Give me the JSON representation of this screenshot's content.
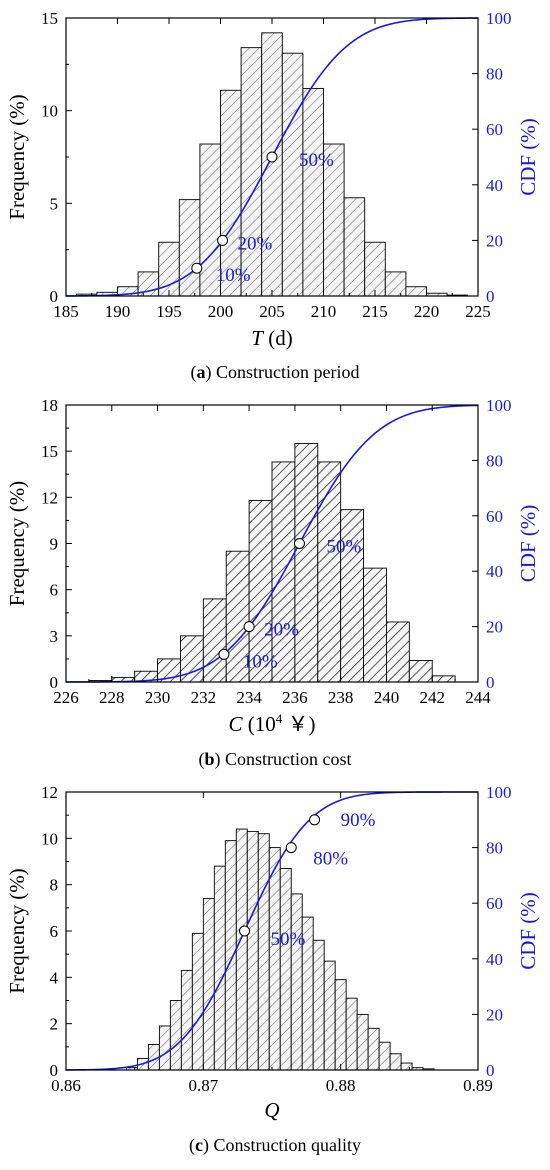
{
  "colors": {
    "cdf": "#1a1adb",
    "axis": "#000000",
    "bar_fill": "#f2f2f2"
  },
  "chart_data": [
    {
      "type": "bar",
      "panel_letter": "a",
      "caption": "Construction period",
      "xlabel_italic": "T",
      "xlabel_rest": " (d)",
      "ylabel": "Frequency (%)",
      "y2label": "CDF (%)",
      "xlim": [
        185,
        225
      ],
      "ylim": [
        0,
        15
      ],
      "y2lim": [
        0,
        100
      ],
      "xticks": [
        185,
        190,
        195,
        200,
        205,
        210,
        215,
        220,
        225
      ],
      "yticks": [
        0,
        5,
        10,
        15
      ],
      "y2ticks": [
        0,
        20,
        40,
        60,
        80,
        100
      ],
      "bin_width": 2,
      "hatch": "light",
      "bins": [
        {
          "x": 187,
          "value": 0.1
        },
        {
          "x": 189,
          "value": 0.2
        },
        {
          "x": 191,
          "value": 0.5
        },
        {
          "x": 193,
          "value": 1.3
        },
        {
          "x": 195,
          "value": 2.9
        },
        {
          "x": 197,
          "value": 5.2
        },
        {
          "x": 199,
          "value": 8.2
        },
        {
          "x": 201,
          "value": 11.1
        },
        {
          "x": 203,
          "value": 13.4
        },
        {
          "x": 205,
          "value": 14.2
        },
        {
          "x": 207,
          "value": 13.1
        },
        {
          "x": 209,
          "value": 11.2
        },
        {
          "x": 211,
          "value": 8.2
        },
        {
          "x": 213,
          "value": 5.3
        },
        {
          "x": 215,
          "value": 2.9
        },
        {
          "x": 217,
          "value": 1.3
        },
        {
          "x": 219,
          "value": 0.5
        },
        {
          "x": 221,
          "value": 0.15
        },
        {
          "x": 223,
          "value": 0.05
        }
      ],
      "cdf": {
        "mean": 205,
        "sd": 5.7
      },
      "markers": [
        {
          "x": 197.7,
          "cdf": 10,
          "label": "10%"
        },
        {
          "x": 200.2,
          "cdf": 20,
          "label": "20%"
        },
        {
          "x": 205.0,
          "cdf": 50,
          "label": "50%"
        }
      ]
    },
    {
      "type": "bar",
      "panel_letter": "b",
      "caption": "Construction cost",
      "xlabel_italic": "C",
      "xlabel_rest": " (10",
      "xlabel_sup": "4",
      "xlabel_tail": " ￥)",
      "ylabel": "Frequency (%)",
      "y2label": "CDF (%)",
      "xlim": [
        226,
        244
      ],
      "ylim": [
        0,
        18
      ],
      "y2lim": [
        0,
        100
      ],
      "xticks": [
        226,
        228,
        230,
        232,
        234,
        236,
        238,
        240,
        242,
        244
      ],
      "yticks": [
        0,
        3,
        6,
        9,
        12,
        15,
        18
      ],
      "y2ticks": [
        0,
        20,
        40,
        60,
        80,
        100
      ],
      "bin_width": 1,
      "hatch": "dense",
      "bins": [
        {
          "x": 227.5,
          "value": 0.1
        },
        {
          "x": 228.5,
          "value": 0.3
        },
        {
          "x": 229.5,
          "value": 0.7
        },
        {
          "x": 230.5,
          "value": 1.5
        },
        {
          "x": 231.5,
          "value": 3.0
        },
        {
          "x": 232.5,
          "value": 5.4
        },
        {
          "x": 233.5,
          "value": 8.5
        },
        {
          "x": 234.5,
          "value": 11.8
        },
        {
          "x": 235.5,
          "value": 14.3
        },
        {
          "x": 236.5,
          "value": 15.5
        },
        {
          "x": 237.5,
          "value": 14.3
        },
        {
          "x": 238.5,
          "value": 11.2
        },
        {
          "x": 239.5,
          "value": 7.4
        },
        {
          "x": 240.5,
          "value": 3.9
        },
        {
          "x": 241.5,
          "value": 1.4
        },
        {
          "x": 242.5,
          "value": 0.4
        }
      ],
      "cdf": {
        "mean": 236.2,
        "sd": 2.6
      },
      "markers": [
        {
          "x": 232.9,
          "cdf": 10,
          "label": "10%"
        },
        {
          "x": 234.0,
          "cdf": 20,
          "label": "20%"
        },
        {
          "x": 236.2,
          "cdf": 50,
          "label": "50%"
        }
      ]
    },
    {
      "type": "bar",
      "panel_letter": "c",
      "caption": "Construction quality",
      "xlabel_italic": "Q",
      "xlabel_rest": "",
      "ylabel": "Frequency (%)",
      "y2label": "CDF (%)",
      "xlim": [
        0.86,
        0.89
      ],
      "ylim": [
        0,
        12
      ],
      "y2lim": [
        0,
        100
      ],
      "xticks": [
        0.86,
        0.87,
        0.88,
        0.89
      ],
      "xtick_labels": [
        "0.86",
        "0.87",
        "0.88",
        "0.89"
      ],
      "yticks": [
        0,
        2,
        4,
        6,
        8,
        10,
        12
      ],
      "y2ticks": [
        0,
        20,
        40,
        60,
        80,
        100
      ],
      "bin_width": 0.0008,
      "hatch": "light",
      "bins": [
        {
          "x": 0.8648,
          "value": 0.1
        },
        {
          "x": 0.8656,
          "value": 0.5
        },
        {
          "x": 0.8664,
          "value": 1.1
        },
        {
          "x": 0.8672,
          "value": 1.9
        },
        {
          "x": 0.868,
          "value": 3.0
        },
        {
          "x": 0.8688,
          "value": 4.3
        },
        {
          "x": 0.8696,
          "value": 5.9
        },
        {
          "x": 0.8704,
          "value": 7.4
        },
        {
          "x": 0.8712,
          "value": 8.8
        },
        {
          "x": 0.872,
          "value": 9.9
        },
        {
          "x": 0.8728,
          "value": 10.4
        },
        {
          "x": 0.8736,
          "value": 10.3
        },
        {
          "x": 0.8744,
          "value": 10.2
        },
        {
          "x": 0.8752,
          "value": 9.6
        },
        {
          "x": 0.876,
          "value": 8.7
        },
        {
          "x": 0.8768,
          "value": 7.6
        },
        {
          "x": 0.8776,
          "value": 6.6
        },
        {
          "x": 0.8784,
          "value": 5.6
        },
        {
          "x": 0.8792,
          "value": 4.7
        },
        {
          "x": 0.88,
          "value": 3.9
        },
        {
          "x": 0.8808,
          "value": 3.1
        },
        {
          "x": 0.8816,
          "value": 2.4
        },
        {
          "x": 0.8824,
          "value": 1.8
        },
        {
          "x": 0.8832,
          "value": 1.2
        },
        {
          "x": 0.884,
          "value": 0.7
        },
        {
          "x": 0.8848,
          "value": 0.3
        },
        {
          "x": 0.8856,
          "value": 0.1
        },
        {
          "x": 0.8864,
          "value": 0.05
        }
      ],
      "cdf": {
        "mean": 0.873,
        "sd": 0.0037
      },
      "markers": [
        {
          "x": 0.873,
          "cdf": 50,
          "label": "50%"
        },
        {
          "x": 0.8764,
          "cdf": 80,
          "label": "80%"
        },
        {
          "x": 0.8781,
          "cdf": 90,
          "label": "90%"
        }
      ]
    }
  ]
}
